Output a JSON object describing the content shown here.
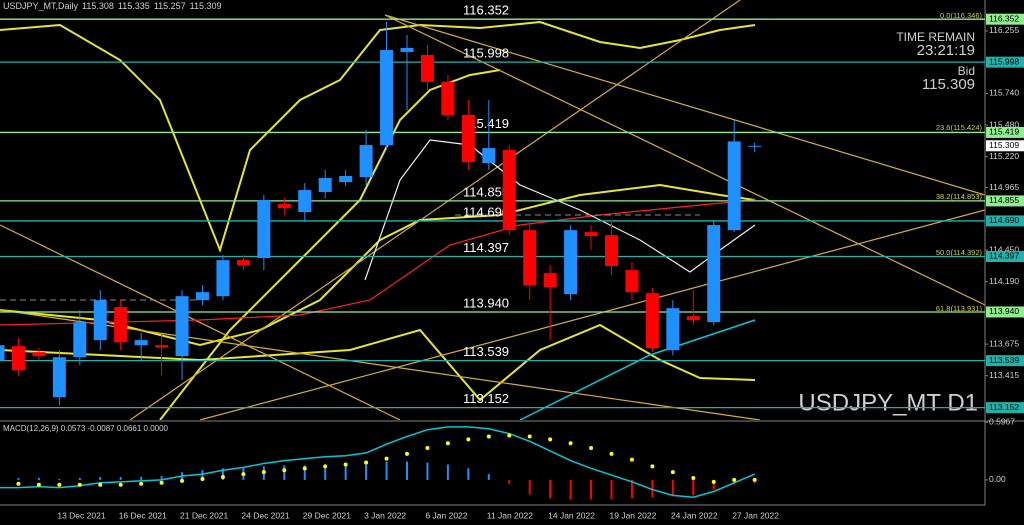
{
  "chart_data": [
    {
      "type": "candlestick",
      "title": "USDJPY_MT,Daily",
      "categories": [
        null,
        null,
        null,
        "13 Dec 2021",
        null,
        null,
        "16 Dec 2021",
        null,
        null,
        "21 Dec 2021",
        null,
        null,
        "24 Dec 2021",
        null,
        null,
        "29 Dec 2021",
        null,
        null,
        "3 Jan 2022",
        null,
        null,
        "6 Jan 2022",
        null,
        null,
        "11 Jan 2022",
        null,
        null,
        "14 Jan 2022",
        null,
        null,
        "19 Jan 2022",
        null,
        null,
        "24 Jan 2022",
        null,
        null,
        "27 Jan 2022",
        null
      ],
      "open": [
        113.543,
        113.658,
        113.609,
        113.238,
        113.567,
        113.708,
        113.98,
        113.666,
        113.666,
        113.576,
        114.037,
        114.07,
        114.367,
        114.384,
        114.829,
        114.763,
        114.928,
        115.01,
        115.051,
        115.315,
        116.082,
        116.057,
        115.835,
        115.563,
        115.167,
        115.274,
        114.614,
        114.26,
        114.087,
        114.598,
        114.573,
        114.285,
        114.095,
        113.625,
        113.905,
        113.856,
        114.614,
        115.308
      ],
      "high": [
        113.749,
        113.724,
        113.642,
        113.625,
        113.955,
        114.12,
        114.037,
        113.765,
        113.749,
        114.12,
        114.161,
        114.408,
        114.408,
        114.903,
        114.878,
        115.002,
        115.109,
        115.109,
        115.439,
        116.329,
        116.222,
        116.14,
        115.892,
        115.686,
        115.686,
        115.315,
        114.697,
        114.326,
        114.656,
        114.656,
        114.697,
        114.351,
        114.136,
        114.037,
        114.12,
        114.697,
        115.521,
        115.335
      ],
      "low": [
        113.419,
        113.419,
        113.543,
        113.172,
        113.502,
        113.625,
        113.625,
        113.543,
        113.419,
        113.378,
        113.996,
        114.037,
        114.285,
        114.285,
        114.738,
        114.68,
        114.878,
        114.977,
        114.985,
        115.274,
        115.604,
        115.769,
        115.521,
        115.109,
        115.109,
        114.573,
        114.037,
        113.708,
        114.037,
        114.45,
        114.243,
        114.037,
        113.609,
        113.584,
        113.831,
        113.831,
        114.598,
        115.257
      ],
      "close": [
        113.666,
        113.46,
        113.576,
        113.567,
        113.856,
        114.037,
        113.691,
        113.708,
        113.65,
        114.07,
        114.103,
        114.367,
        114.326,
        114.862,
        114.796,
        114.944,
        115.043,
        115.06,
        115.315,
        116.098,
        116.115,
        115.835,
        115.563,
        115.175,
        115.29,
        114.614,
        114.161,
        114.145,
        114.614,
        114.565,
        114.318,
        114.103,
        113.642,
        113.971,
        113.872,
        114.656,
        115.345,
        115.309
      ],
      "up_color": "#1e90ff",
      "down_color": "#ff0000",
      "ylim": [
        113.05,
        116.51
      ],
      "yticks": [
        116.255,
        {
          "value": 115.74,
          "label": "115.740"
        },
        {
          "value": 115.48,
          "label": "115.480"
        },
        {
          "value": 115.22,
          "label": "115.220"
        },
        114.965,
        {
          "value": 114.45,
          "label": "114.450"
        },
        {
          "value": 114.19,
          "label": "114.190"
        },
        113.675,
        113.415
      ],
      "levels": [
        {
          "value": 116.352,
          "color": "#90ee90"
        },
        {
          "value": 115.998,
          "color": "#20b2aa"
        },
        {
          "value": 115.419,
          "color": "#90ee90"
        },
        {
          "value": 114.855,
          "color": "#90ee90"
        },
        {
          "value": 114.69,
          "label": "114.690",
          "color": "#20b2aa"
        },
        {
          "value": 114.397,
          "color": "#20b2aa"
        },
        {
          "value": 113.94,
          "label": "113.940",
          "color": "#90ee90"
        },
        {
          "value": 113.539,
          "color": "#20b2aa"
        },
        {
          "value": 113.152,
          "color": "#20b2aa"
        }
      ],
      "fib_labels": [
        {
          "value": 116.346,
          "label": "0.0(116.346)"
        },
        {
          "value": 115.424,
          "label": "23.6(115.424)"
        },
        {
          "value": 114.853,
          "label": "38.2(114.853)"
        },
        {
          "value": 114.392,
          "label": "50.0(114.392)"
        },
        {
          "value": 113.931,
          "label": "61.8(113.931)"
        }
      ],
      "time_remain_label": "TIME REMAIN",
      "time_remain": "23:21:19",
      "bid_label": "Bid",
      "watermark": "USDJPY_MT D1"
    },
    {
      "type": "macd",
      "title": "MACD(12,26,9) 0.0573 -0.0087 0.0661 0.0000",
      "ylim": [
        -0.26,
        0.6
      ],
      "yticks": [
        0.5967,
        {
          "value": 0,
          "label": "0.00"
        }
      ],
      "series": [
        {
          "style": "bar",
          "color": "#1e90ff",
          "negative_color": "#ff0000",
          "values": [
            0.02,
            0.02,
            0.02,
            0.01,
            0.02,
            0.03,
            0.03,
            0.03,
            0.04,
            0.08,
            0.1,
            0.12,
            0.13,
            0.14,
            0.15,
            0.15,
            0.16,
            0.17,
            0.18,
            0.19,
            0.19,
            0.18,
            0.16,
            0.12,
            0.06,
            -0.04,
            -0.15,
            -0.19,
            -0.2,
            -0.2,
            -0.2,
            -0.19,
            -0.18,
            -0.17,
            -0.16,
            -0.1,
            -0.05,
            -0.03
          ]
        },
        {
          "style": "line",
          "color": "#00c8d8",
          "values": [
            -0.08,
            -0.08,
            -0.07,
            -0.08,
            -0.06,
            -0.03,
            -0.02,
            -0.01,
            0.0,
            0.04,
            0.06,
            0.1,
            0.13,
            0.17,
            0.2,
            0.22,
            0.24,
            0.25,
            0.28,
            0.37,
            0.45,
            0.52,
            0.55,
            0.55,
            0.53,
            0.48,
            0.4,
            0.3,
            0.2,
            0.12,
            0.05,
            -0.02,
            -0.1,
            -0.16,
            -0.18,
            -0.12,
            -0.03,
            0.06
          ]
        },
        {
          "style": "dots",
          "color": "#ffff00",
          "values": [
            -0.03,
            -0.04,
            -0.05,
            -0.05,
            -0.05,
            -0.05,
            -0.05,
            -0.04,
            -0.03,
            -0.01,
            0.01,
            0.03,
            0.06,
            0.08,
            0.1,
            0.12,
            0.14,
            0.16,
            0.18,
            0.22,
            0.27,
            0.33,
            0.38,
            0.42,
            0.45,
            0.46,
            0.45,
            0.42,
            0.38,
            0.33,
            0.27,
            0.21,
            0.14,
            0.08,
            0.02,
            -0.02,
            0.0,
            0.0
          ]
        }
      ]
    }
  ]
}
